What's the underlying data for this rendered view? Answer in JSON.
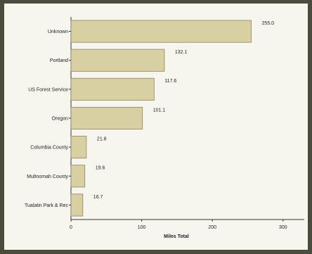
{
  "chart_data": {
    "type": "bar",
    "orientation": "horizontal",
    "categories": [
      "Unknown",
      "Portland",
      "US Forest Service",
      "Oregon",
      "Columbia County",
      "Multnomah County",
      "Tualatin Park & Rec"
    ],
    "values": [
      255.0,
      132.1,
      117.6,
      101.1,
      21.8,
      19.6,
      16.7
    ],
    "value_labels": [
      "255.0",
      "132.1",
      "117.6",
      "101.1",
      "21.8",
      "19.6",
      "16.7"
    ],
    "xlabel": "Miles Total",
    "ylabel": "",
    "xlim": [
      0,
      330
    ],
    "xticks": [
      0,
      100,
      200,
      300
    ],
    "grid": false,
    "colors": {
      "bar_fill": "#d8d0a2",
      "bar_stroke": "#8a8466",
      "background": "#f6f5ee",
      "frame": "#4a4d3c"
    }
  }
}
